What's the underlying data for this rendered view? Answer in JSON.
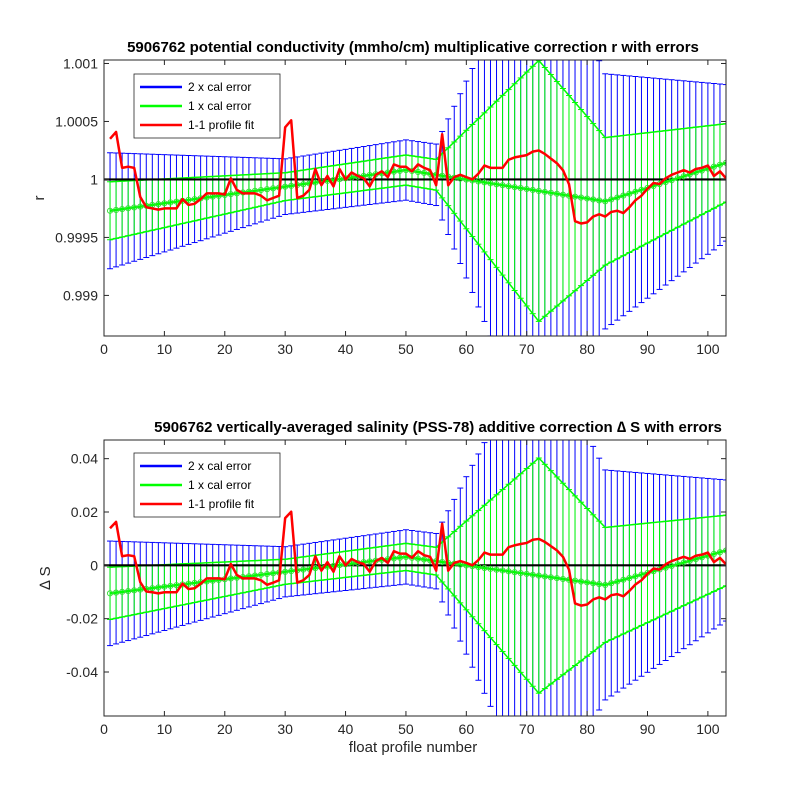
{
  "colors": {
    "two_cal": "#0000ff",
    "one_cal": "#00ff00",
    "fit": "#ff0000",
    "zero_line": "#000000",
    "one_cal_mean": "#33dd33"
  },
  "chart_data": [
    {
      "type": "line",
      "title": "5906762 potential conductivity (mmho/cm) multiplicative correction r with errors",
      "xlabel": "",
      "ylabel": "r",
      "xlim": [
        0,
        103
      ],
      "ylim": [
        0.99865,
        1.00103
      ],
      "xticks": [
        0,
        10,
        20,
        30,
        40,
        50,
        60,
        70,
        80,
        90,
        100
      ],
      "yticks": [
        0.999,
        0.9995,
        1,
        1.0005,
        1.001
      ],
      "ytick_labels": [
        "0.999",
        "0.9995",
        "1",
        "1.0005",
        "1.001"
      ],
      "zero_line": 1,
      "legend": {
        "position": "top-left",
        "entries": [
          "2 x cal error",
          "1 x cal error",
          "1-1 profile fit"
        ]
      },
      "x": [
        1,
        2,
        3,
        4,
        5,
        6,
        7,
        8,
        9,
        10,
        11,
        12,
        13,
        14,
        15,
        16,
        17,
        18,
        19,
        20,
        21,
        22,
        23,
        24,
        25,
        26,
        27,
        28,
        29,
        30,
        31,
        32,
        33,
        34,
        35,
        36,
        37,
        38,
        39,
        40,
        41,
        42,
        43,
        44,
        45,
        46,
        47,
        48,
        49,
        50,
        51,
        52,
        53,
        54,
        55,
        56,
        57,
        58,
        59,
        60,
        61,
        62,
        63,
        64,
        65,
        66,
        67,
        68,
        69,
        70,
        71,
        72,
        73,
        74,
        75,
        76,
        77,
        78,
        79,
        80,
        81,
        82,
        83,
        84,
        85,
        86,
        87,
        88,
        89,
        90,
        91,
        92,
        93,
        94,
        95,
        96,
        97,
        98,
        99,
        100,
        101,
        102,
        103
      ],
      "series": [
        {
          "name": "1-1 profile fit",
          "values": [
            1.00035,
            1.00041,
            1.0001,
            1.00011,
            1.0001,
            0.99985,
            0.99976,
            0.99975,
            0.99974,
            0.99975,
            0.99975,
            0.99975,
            0.99983,
            0.99978,
            0.99979,
            0.99983,
            0.99988,
            0.99988,
            0.99988,
            0.99987,
            1.00001,
            0.99991,
            0.99988,
            0.99988,
            0.99988,
            0.99986,
            0.99982,
            0.99984,
            0.99986,
            1.00045,
            1.00051,
            0.99984,
            0.99986,
            0.99991,
            1.00009,
            0.99995,
            1.00003,
            0.99994,
            1.00009,
            1.0,
            1.00006,
            1.00003,
            1.00001,
            0.99994,
            1.00004,
            1.00007,
            1.00002,
            1.00013,
            1.00011,
            1.00011,
            1.00007,
            1.00013,
            1.0001,
            1.00008,
            0.99995,
            1.00039,
            0.99995,
            1.00002,
            1.00004,
            1.00002,
            1.0,
            1.00005,
            1.00012,
            1.0001,
            1.0001,
            1.0001,
            1.00017,
            1.00019,
            1.0002,
            1.00021,
            1.00024,
            1.00025,
            1.00022,
            1.00018,
            1.00014,
            1.00008,
            0.99996,
            0.99964,
            0.99962,
            0.99963,
            0.99968,
            0.9997,
            0.99968,
            0.99972,
            0.99973,
            0.99971,
            0.99976,
            0.99982,
            0.99986,
            0.99992,
            0.99997,
            0.99996,
            1.00001,
            1.00004,
            1.00006,
            1.00008,
            1.00006,
            1.00009,
            1.0001,
            1.00012,
            1.00003,
            1.00007,
            1.00001
          ]
        },
        {
          "name": "1 x cal error",
          "model": "piecewise linear mean with error band"
        },
        {
          "name": "2 x cal error",
          "model": "piecewise linear mean with error band"
        }
      ]
    },
    {
      "type": "line",
      "title": "5906762 vertically-averaged salinity (PSS-78) additive correction ∆ S with errors",
      "xlabel": "float profile number",
      "ylabel": "∆ S",
      "xlim": [
        0,
        103
      ],
      "ylim": [
        -0.0565,
        0.047
      ],
      "xticks": [
        0,
        10,
        20,
        30,
        40,
        50,
        60,
        70,
        80,
        90,
        100
      ],
      "yticks": [
        -0.04,
        -0.02,
        0,
        0.02,
        0.04
      ],
      "ytick_labels": [
        "-0.04",
        "-0.02",
        "0",
        "0.02",
        "0.04"
      ],
      "zero_line": 0,
      "legend": {
        "position": "top-left",
        "entries": [
          "2 x cal error",
          "1 x cal error",
          "1-1 profile fit"
        ]
      },
      "x": [
        1,
        2,
        3,
        4,
        5,
        6,
        7,
        8,
        9,
        10,
        11,
        12,
        13,
        14,
        15,
        16,
        17,
        18,
        19,
        20,
        21,
        22,
        23,
        24,
        25,
        26,
        27,
        28,
        29,
        30,
        31,
        32,
        33,
        34,
        35,
        36,
        37,
        38,
        39,
        40,
        41,
        42,
        43,
        44,
        45,
        46,
        47,
        48,
        49,
        50,
        51,
        52,
        53,
        54,
        55,
        56,
        57,
        58,
        59,
        60,
        61,
        62,
        63,
        64,
        65,
        66,
        67,
        68,
        69,
        70,
        71,
        72,
        73,
        74,
        75,
        76,
        77,
        78,
        79,
        80,
        81,
        82,
        83,
        84,
        85,
        86,
        87,
        88,
        89,
        90,
        91,
        92,
        93,
        94,
        95,
        96,
        97,
        98,
        99,
        100,
        101,
        102,
        103
      ],
      "series": [
        {
          "name": "1-1 profile fit",
          "values": [
            0.0139,
            0.0163,
            0.0034,
            0.0038,
            0.0034,
            -0.0063,
            -0.0098,
            -0.0101,
            -0.0105,
            -0.0101,
            -0.0101,
            -0.0101,
            -0.0069,
            -0.0089,
            -0.0086,
            -0.0069,
            -0.0049,
            -0.0049,
            -0.0049,
            -0.0052,
            0.0005,
            -0.0036,
            -0.0049,
            -0.0049,
            -0.0049,
            -0.0056,
            -0.0073,
            -0.0065,
            -0.0056,
            0.0177,
            0.0201,
            -0.0065,
            -0.0056,
            -0.0036,
            0.0034,
            -0.002,
            0.0012,
            -0.0024,
            0.0034,
            0.0,
            0.0024,
            0.0012,
            0.0005,
            -0.0024,
            0.0016,
            0.0028,
            0.0009,
            0.0053,
            0.0044,
            0.0044,
            0.0028,
            0.0053,
            0.0038,
            0.0032,
            -0.002,
            0.0156,
            -0.002,
            0.0009,
            0.0016,
            0.0009,
            0.0,
            0.002,
            0.0048,
            0.004,
            0.004,
            0.004,
            0.0068,
            0.0075,
            0.008,
            0.0084,
            0.0096,
            0.0099,
            0.0088,
            0.0072,
            0.0056,
            0.0032,
            -0.0016,
            -0.0143,
            -0.0151,
            -0.0147,
            -0.0128,
            -0.012,
            -0.0128,
            -0.0112,
            -0.0108,
            -0.0116,
            -0.0096,
            -0.0072,
            -0.0056,
            -0.0032,
            -0.0012,
            -0.0016,
            0.0004,
            0.0016,
            0.0024,
            0.0032,
            0.0024,
            0.0036,
            0.004,
            0.0048,
            0.0012,
            0.0028,
            0.0004
          ]
        },
        {
          "name": "1 x cal error",
          "model": "piecewise linear mean with error band"
        },
        {
          "name": "2 x cal error",
          "model": "piecewise linear mean with error band"
        }
      ]
    }
  ]
}
